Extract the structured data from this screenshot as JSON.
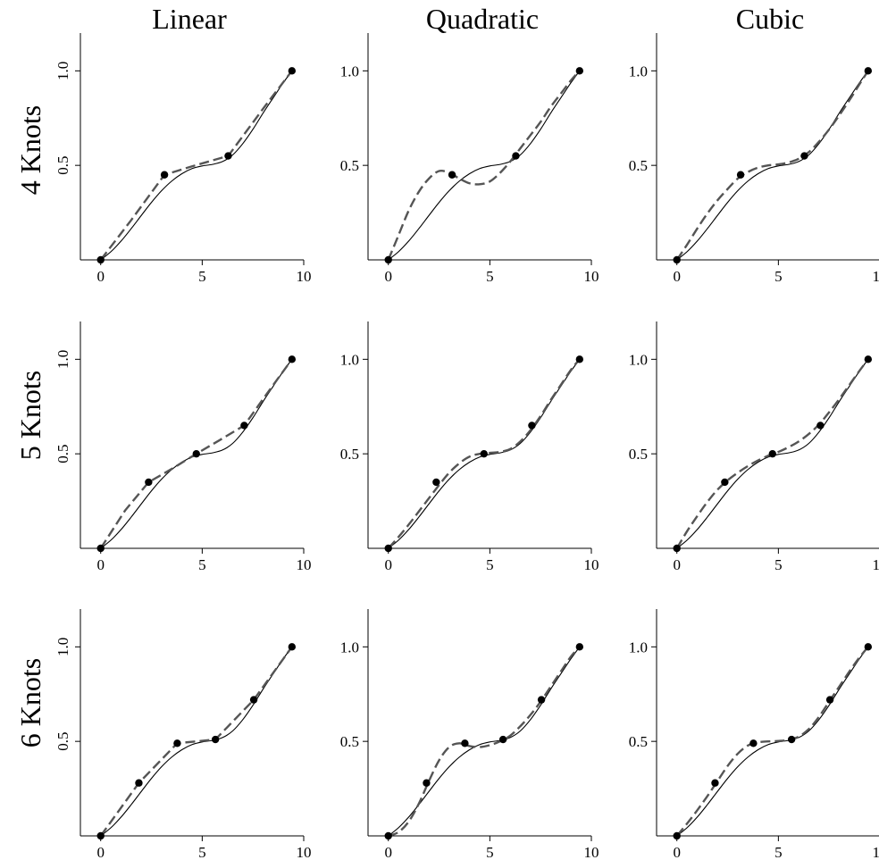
{
  "columns": [
    "Linear",
    "Quadratic",
    "Cubic"
  ],
  "rows": [
    "4 Knots",
    "5 Knots",
    "6 Knots"
  ],
  "colors": {
    "true_curve": "#000000",
    "spline_curve": "#555555",
    "knots": "#000000"
  },
  "chart_data": {
    "type": "line",
    "grid": false,
    "xlim": [
      -1,
      10
    ],
    "ylim": [
      0,
      1.2
    ],
    "x_ticks": [
      0,
      5,
      10
    ],
    "x_tick_labels": [
      "0",
      "5",
      "10"
    ],
    "y_ticks": [
      0.5,
      1.0
    ],
    "y_tick_labels": [
      "0.5",
      "1.0"
    ],
    "true_function": {
      "description_of_shape": "smooth S-shaped curve rising from 0 to 1 with a plateau near 0.5",
      "x": [
        0,
        0.5,
        1,
        1.5,
        2,
        2.5,
        3,
        3.5,
        4,
        4.5,
        5,
        5.5,
        6,
        6.5,
        7,
        7.5,
        8,
        8.5,
        9,
        9.42
      ],
      "y": [
        0,
        0.043,
        0.099,
        0.165,
        0.235,
        0.304,
        0.366,
        0.417,
        0.456,
        0.483,
        0.497,
        0.505,
        0.52,
        0.555,
        0.615,
        0.691,
        0.777,
        0.858,
        0.938,
        1.0
      ]
    },
    "panels": [
      {
        "row": "4 Knots",
        "column": "Linear",
        "knots_x": [
          0,
          3.14,
          6.28,
          9.42
        ],
        "knots_y": [
          0,
          0.45,
          0.55,
          1.0
        ],
        "spline_x": [
          0,
          1.5,
          3.14,
          4.5,
          6.28,
          8,
          9.42
        ],
        "spline_y": [
          0,
          0.21,
          0.45,
          0.495,
          0.55,
          0.8,
          1.0
        ]
      },
      {
        "row": "4 Knots",
        "column": "Quadratic",
        "knots_x": [
          0,
          3.14,
          6.28,
          9.42
        ],
        "knots_y": [
          0,
          0.45,
          0.55,
          1.0
        ],
        "spline_x": [
          0,
          0.5,
          1,
          1.5,
          2,
          2.5,
          3,
          3.5,
          4,
          4.5,
          5,
          5.5,
          6,
          6.5,
          7,
          7.5,
          8,
          8.5,
          9,
          9.42
        ],
        "spline_y": [
          0,
          0.13,
          0.26,
          0.36,
          0.43,
          0.47,
          0.46,
          0.43,
          0.405,
          0.4,
          0.415,
          0.46,
          0.52,
          0.59,
          0.66,
          0.73,
          0.81,
          0.88,
          0.95,
          1.0
        ]
      },
      {
        "row": "4 Knots",
        "column": "Cubic",
        "knots_x": [
          0,
          3.14,
          6.28,
          9.42
        ],
        "knots_y": [
          0,
          0.45,
          0.55,
          1.0
        ],
        "spline_x": [
          0,
          0.5,
          1,
          1.5,
          2,
          2.5,
          3,
          3.5,
          4,
          4.5,
          5,
          5.5,
          6,
          6.5,
          7,
          7.5,
          8,
          8.5,
          9,
          9.42
        ],
        "spline_y": [
          0,
          0.08,
          0.165,
          0.245,
          0.315,
          0.375,
          0.43,
          0.465,
          0.488,
          0.5,
          0.505,
          0.515,
          0.535,
          0.57,
          0.625,
          0.69,
          0.765,
          0.845,
          0.93,
          1.0
        ]
      },
      {
        "row": "5 Knots",
        "column": "Linear",
        "knots_x": [
          0,
          2.36,
          4.71,
          7.07,
          9.42
        ],
        "knots_y": [
          0,
          0.35,
          0.5,
          0.65,
          1.0
        ],
        "spline_x": [
          0,
          1.2,
          2.36,
          3.5,
          4.71,
          5.9,
          7.07,
          8.2,
          9.42
        ],
        "spline_y": [
          0,
          0.2,
          0.35,
          0.42,
          0.5,
          0.575,
          0.65,
          0.82,
          1.0
        ]
      },
      {
        "row": "5 Knots",
        "column": "Quadratic",
        "knots_x": [
          0,
          2.36,
          4.71,
          7.07,
          9.42
        ],
        "knots_y": [
          0,
          0.35,
          0.5,
          0.65,
          1.0
        ],
        "spline_x": [
          0,
          0.5,
          1,
          1.5,
          2,
          2.5,
          3,
          3.5,
          4,
          4.5,
          5,
          5.5,
          6,
          6.5,
          7,
          7.5,
          8,
          8.5,
          9,
          9.42
        ],
        "spline_y": [
          0,
          0.06,
          0.125,
          0.195,
          0.265,
          0.335,
          0.4,
          0.45,
          0.485,
          0.5,
          0.505,
          0.51,
          0.525,
          0.565,
          0.625,
          0.7,
          0.785,
          0.865,
          0.945,
          1.0
        ]
      },
      {
        "row": "5 Knots",
        "column": "Cubic",
        "knots_x": [
          0,
          2.36,
          4.71,
          7.07,
          9.42
        ],
        "knots_y": [
          0,
          0.35,
          0.5,
          0.65,
          1.0
        ],
        "spline_x": [
          0,
          0.5,
          1,
          1.5,
          2,
          2.5,
          3,
          3.5,
          4,
          4.5,
          5,
          5.5,
          6,
          6.5,
          7,
          7.5,
          8,
          8.5,
          9,
          9.42
        ],
        "spline_y": [
          0,
          0.09,
          0.17,
          0.245,
          0.31,
          0.36,
          0.4,
          0.435,
          0.465,
          0.49,
          0.51,
          0.535,
          0.565,
          0.605,
          0.655,
          0.72,
          0.79,
          0.865,
          0.94,
          1.0
        ]
      },
      {
        "row": "6 Knots",
        "column": "Linear",
        "knots_x": [
          0,
          1.88,
          3.77,
          5.65,
          7.54,
          9.42
        ],
        "knots_y": [
          0,
          0.28,
          0.49,
          0.51,
          0.72,
          1.0
        ],
        "spline_x": [
          0,
          1.88,
          3.77,
          5.65,
          7.54,
          9.42
        ],
        "spline_y": [
          0,
          0.28,
          0.49,
          0.51,
          0.72,
          1.0
        ]
      },
      {
        "row": "6 Knots",
        "column": "Quadratic",
        "knots_x": [
          0,
          1.88,
          3.77,
          5.65,
          7.54,
          9.42
        ],
        "knots_y": [
          0,
          0.28,
          0.49,
          0.51,
          0.72,
          1.0
        ],
        "spline_x": [
          0,
          0.5,
          1,
          1.5,
          2,
          2.5,
          3,
          3.5,
          4,
          4.5,
          5,
          5.5,
          6,
          6.5,
          7,
          7.5,
          8,
          8.5,
          9,
          9.42
        ],
        "spline_y": [
          0,
          0.02,
          0.075,
          0.17,
          0.29,
          0.4,
          0.47,
          0.49,
          0.475,
          0.47,
          0.48,
          0.5,
          0.53,
          0.58,
          0.64,
          0.71,
          0.79,
          0.87,
          0.95,
          1.0
        ]
      },
      {
        "row": "6 Knots",
        "column": "Cubic",
        "knots_x": [
          0,
          1.88,
          3.77,
          5.65,
          7.54,
          9.42
        ],
        "knots_y": [
          0,
          0.28,
          0.49,
          0.51,
          0.72,
          1.0
        ],
        "spline_x": [
          0,
          0.5,
          1,
          1.5,
          2,
          2.5,
          3,
          3.5,
          4,
          4.5,
          5,
          5.5,
          6,
          6.5,
          7,
          7.5,
          8,
          8.5,
          9,
          9.42
        ],
        "spline_y": [
          0,
          0.065,
          0.135,
          0.21,
          0.29,
          0.37,
          0.435,
          0.478,
          0.495,
          0.5,
          0.502,
          0.508,
          0.525,
          0.565,
          0.63,
          0.71,
          0.79,
          0.87,
          0.945,
          1.0
        ]
      }
    ]
  }
}
